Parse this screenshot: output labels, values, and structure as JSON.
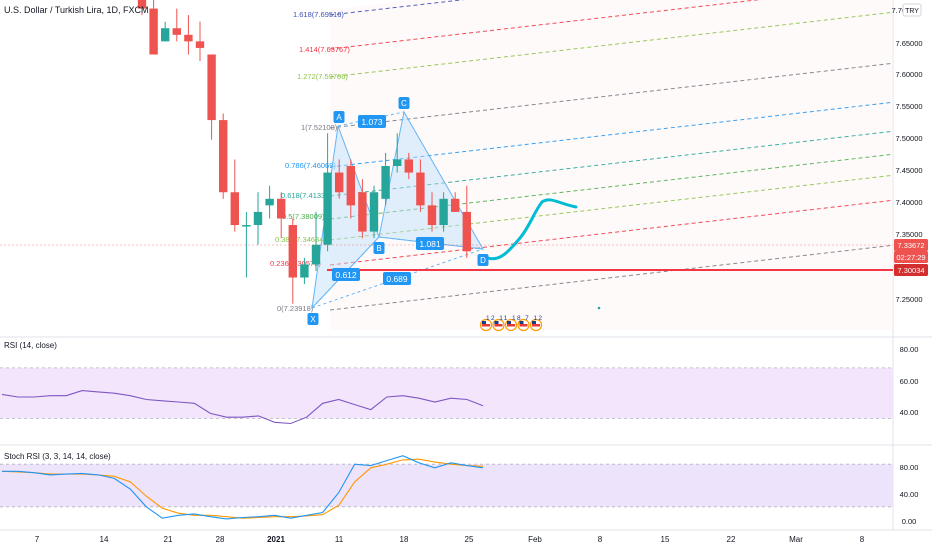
{
  "chart_title": "U.S. Dollar / Turkish Lira, 1D, FXCM",
  "currency_badge": "TRY",
  "colors": {
    "up": "#26a69a",
    "down": "#ef5350",
    "pattern_fill": "#bbdefb",
    "pattern_line": "#64b5f6",
    "hline": "#f23645",
    "rsi_line": "#7e57c2",
    "rsi_band": "#f3e5fc",
    "stoch_k": "#2196f3",
    "stoch_d": "#ff9800",
    "annotation": "#00bcd4",
    "axis_text": "#131722",
    "grid": "#f0f3fa"
  },
  "price_axis": {
    "ticks": [
      "7.70000",
      "7.65000",
      "7.60000",
      "7.55000",
      "7.50000",
      "7.45000",
      "7.40000",
      "7.35000",
      "7.25000"
    ],
    "tags": [
      {
        "text": "7.33672",
        "color": "#ef5350"
      },
      {
        "text": "02:27:29",
        "color": "#ef5350"
      },
      {
        "text": "7.30034",
        "color": "#d32f2f"
      }
    ]
  },
  "time_axis": {
    "ticks": [
      "7",
      "14",
      "21",
      "28",
      "2021",
      "11",
      "18",
      "25",
      "Feb",
      "8",
      "15",
      "22",
      "Mar",
      "8"
    ]
  },
  "fib_levels": [
    {
      "label": "1.618(7.69516)",
      "color": "#3f51b5"
    },
    {
      "label": "1.414(7.63767)",
      "color": "#f23645"
    },
    {
      "label": "1.272(7.59766)",
      "color": "#8bc34a"
    },
    {
      "label": "1(7.52100)",
      "color": "#787b86"
    },
    {
      "label": "0.786(7.46069)",
      "color": "#2196f3"
    },
    {
      "label": "0.618(7.41334)",
      "color": "#26a69a"
    },
    {
      "label": "0.5(7.38009)",
      "color": "#4caf50"
    },
    {
      "label": "0.382(7.34684)",
      "color": "#8bc34a"
    },
    {
      "label": "0.236(7.30570)",
      "color": "#f23645"
    },
    {
      "label": "0(7.23918)",
      "color": "#787b86"
    }
  ],
  "pattern": {
    "points": [
      {
        "name": "X",
        "label": "X"
      },
      {
        "name": "A",
        "label": "A"
      },
      {
        "name": "B",
        "label": "B"
      },
      {
        "name": "C",
        "label": "C"
      },
      {
        "name": "D",
        "label": "D"
      }
    ],
    "ratios": [
      "1.073",
      "0.612",
      "1.081",
      "0.689"
    ]
  },
  "events_label": "12 11 18 7 12",
  "rsi": {
    "title": "RSI (14, close)",
    "ticks": [
      "80.00",
      "60.00",
      "40.00"
    ],
    "values": [
      49,
      47,
      47,
      48,
      48,
      52,
      51,
      50,
      48,
      45,
      44,
      43,
      42,
      34,
      31,
      31,
      32,
      27,
      26,
      31,
      42,
      45,
      41,
      37,
      47,
      48,
      46,
      43,
      46,
      45,
      40
    ],
    "ylim": [
      0,
      100
    ]
  },
  "stoch": {
    "title": "Stoch RSI (3, 3, 14, 14, close)",
    "ticks": [
      "80.00",
      "40.00",
      "0.00"
    ],
    "k": [
      70,
      70,
      68,
      65,
      66,
      67,
      65,
      60,
      45,
      20,
      4,
      8,
      10,
      6,
      3,
      5,
      6,
      8,
      4,
      8,
      12,
      40,
      80,
      78,
      85,
      92,
      82,
      75,
      82,
      78,
      75
    ],
    "d": [
      70,
      69,
      68,
      66,
      66,
      66,
      65,
      63,
      55,
      35,
      18,
      11,
      8,
      8,
      6,
      4,
      5,
      6,
      6,
      7,
      9,
      22,
      55,
      75,
      80,
      86,
      87,
      83,
      80,
      78,
      77
    ],
    "ylim": [
      0,
      100
    ]
  },
  "chart_data": {
    "type": "candlestick",
    "title": "U.S. Dollar / Turkish Lira, 1D, FXCM",
    "y_range": [
      7.22,
      7.72
    ],
    "candles": [
      {
        "o": 7.74,
        "h": 7.76,
        "l": 7.7,
        "c": 7.71
      },
      {
        "o": 7.71,
        "h": 7.74,
        "l": 7.64,
        "c": 7.64
      },
      {
        "o": 7.66,
        "h": 7.69,
        "l": 7.66,
        "c": 7.68
      },
      {
        "o": 7.68,
        "h": 7.71,
        "l": 7.66,
        "c": 7.67
      },
      {
        "o": 7.67,
        "h": 7.7,
        "l": 7.64,
        "c": 7.66
      },
      {
        "o": 7.66,
        "h": 7.69,
        "l": 7.63,
        "c": 7.65
      },
      {
        "o": 7.64,
        "h": 7.64,
        "l": 7.51,
        "c": 7.54
      },
      {
        "o": 7.54,
        "h": 7.55,
        "l": 7.42,
        "c": 7.43
      },
      {
        "o": 7.43,
        "h": 7.48,
        "l": 7.37,
        "c": 7.38
      },
      {
        "o": 7.38,
        "h": 7.4,
        "l": 7.3,
        "c": 7.38
      },
      {
        "o": 7.38,
        "h": 7.43,
        "l": 7.35,
        "c": 7.4
      },
      {
        "o": 7.41,
        "h": 7.44,
        "l": 7.39,
        "c": 7.42
      },
      {
        "o": 7.42,
        "h": 7.43,
        "l": 7.36,
        "c": 7.39
      },
      {
        "o": 7.38,
        "h": 7.39,
        "l": 7.26,
        "c": 7.3
      },
      {
        "o": 7.3,
        "h": 7.33,
        "l": 7.29,
        "c": 7.32
      },
      {
        "o": 7.32,
        "h": 7.4,
        "l": 7.31,
        "c": 7.35
      },
      {
        "o": 7.35,
        "h": 7.52,
        "l": 7.34,
        "c": 7.46
      },
      {
        "o": 7.46,
        "h": 7.48,
        "l": 7.42,
        "c": 7.43
      },
      {
        "o": 7.47,
        "h": 7.48,
        "l": 7.39,
        "c": 7.41
      },
      {
        "o": 7.43,
        "h": 7.45,
        "l": 7.36,
        "c": 7.37
      },
      {
        "o": 7.37,
        "h": 7.44,
        "l": 7.36,
        "c": 7.43
      },
      {
        "o": 7.42,
        "h": 7.49,
        "l": 7.41,
        "c": 7.47
      },
      {
        "o": 7.47,
        "h": 7.52,
        "l": 7.46,
        "c": 7.48
      },
      {
        "o": 7.48,
        "h": 7.49,
        "l": 7.45,
        "c": 7.46
      },
      {
        "o": 7.46,
        "h": 7.48,
        "l": 7.4,
        "c": 7.41
      },
      {
        "o": 7.41,
        "h": 7.43,
        "l": 7.37,
        "c": 7.38
      },
      {
        "o": 7.38,
        "h": 7.43,
        "l": 7.37,
        "c": 7.42
      },
      {
        "o": 7.42,
        "h": 7.43,
        "l": 7.4,
        "c": 7.4
      },
      {
        "o": 7.4,
        "h": 7.44,
        "l": 7.33,
        "c": 7.34
      }
    ]
  }
}
